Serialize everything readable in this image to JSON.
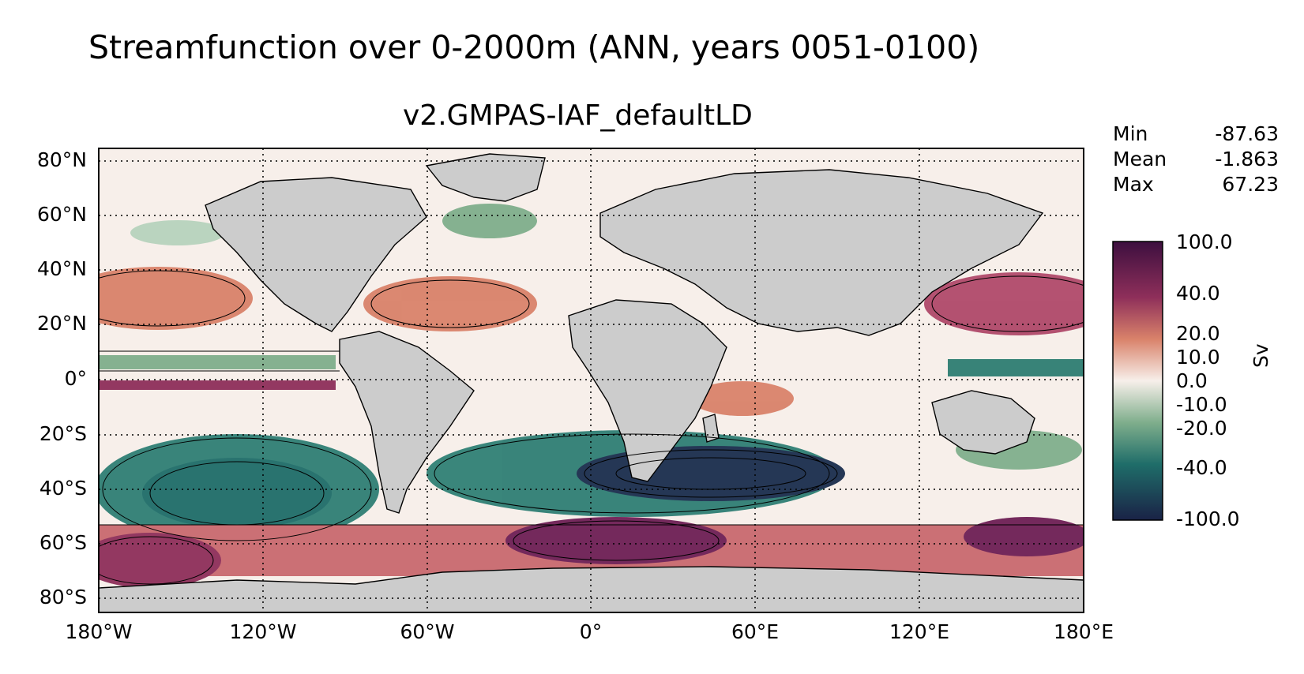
{
  "title": "Streamfunction over 0-2000m (ANN, years 0051-0100)",
  "subtitle": "v2.GMPAS-IAF_defaultLD",
  "stats": [
    {
      "label": "Min",
      "value": "-87.63"
    },
    {
      "label": "Mean",
      "value": "-1.863"
    },
    {
      "label": "Max",
      "value": "67.23"
    }
  ],
  "lat_labels": [
    "80°N",
    "60°N",
    "40°N",
    "20°N",
    "0°",
    "20°S",
    "40°S",
    "60°S",
    "80°S"
  ],
  "lon_labels": [
    "180°W",
    "120°W",
    "60°W",
    "0°",
    "60°E",
    "120°E",
    "180°E"
  ],
  "colorbar": {
    "unit": "Sv",
    "ticks": [
      "100.0",
      "40.0",
      "20.0",
      "10.0",
      "0.0",
      "-10.0",
      "-20.0",
      "-40.0",
      "-100.0"
    ],
    "colors": {
      "max": "#3d0f3f",
      "high": "#8e2f5a",
      "mid_pos": "#d9826a",
      "zero": "#f7efea",
      "mid_neg": "#7fae8c",
      "low": "#1f6d69",
      "min": "#1a2246"
    }
  },
  "map_colors": {
    "land": "#cccccc",
    "coast": "#000000"
  }
}
